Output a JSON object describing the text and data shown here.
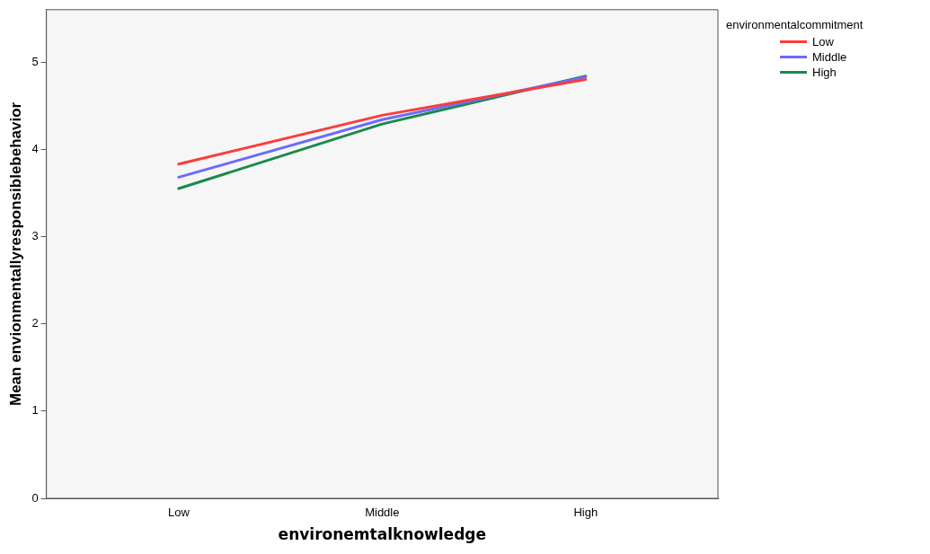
{
  "chart_data": {
    "type": "line",
    "xlabel": "environemtalknowledge",
    "ylabel": "Mean envionmentallyresponsiblebehavior",
    "legend_title": "environmentalcommitment",
    "categories": [
      "Low",
      "Middle",
      "High"
    ],
    "series": [
      {
        "name": "Low",
        "color": "#ff3b3b",
        "values": [
          3.83,
          4.39,
          4.8
        ]
      },
      {
        "name": "Middle",
        "color": "#6b6bff",
        "values": [
          3.68,
          4.34,
          4.83
        ]
      },
      {
        "name": "High",
        "color": "#1a8a4a",
        "values": [
          3.55,
          4.29,
          4.84
        ]
      }
    ],
    "ylim": [
      0,
      5.6
    ],
    "yticks": [
      0,
      1,
      2,
      3,
      4,
      5
    ],
    "grid": false,
    "legend": "top right",
    "marker": "none",
    "line_style": "solid"
  }
}
